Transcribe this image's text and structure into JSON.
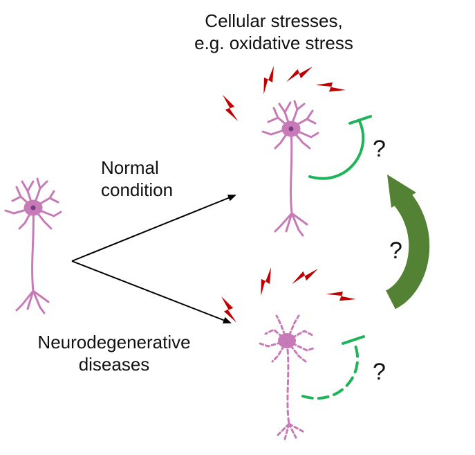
{
  "labels": {
    "stress_line1": "Cellular stresses,",
    "stress_line2": "e.g. oxidative stress",
    "normal_line1": "Normal",
    "normal_line2": "condition",
    "disease_line1": "Neurodegenerative",
    "disease_line2": "diseases",
    "q_top": "?",
    "q_middle": "?",
    "q_bottom": "?"
  },
  "icons": [
    "neuron-healthy-left-icon",
    "neuron-healthy-stressed-icon",
    "neuron-degenerating-icon",
    "lightning-bolt-icon",
    "inhibition-arc-icon",
    "feedback-arrow-icon"
  ],
  "colors": {
    "neuron": "#c77bb6",
    "nucleus": "#7a3a8c",
    "bolt": "#c00000",
    "inhibition": "#1fb35a",
    "feedback_arrow": "#548235",
    "text": "#111111"
  }
}
